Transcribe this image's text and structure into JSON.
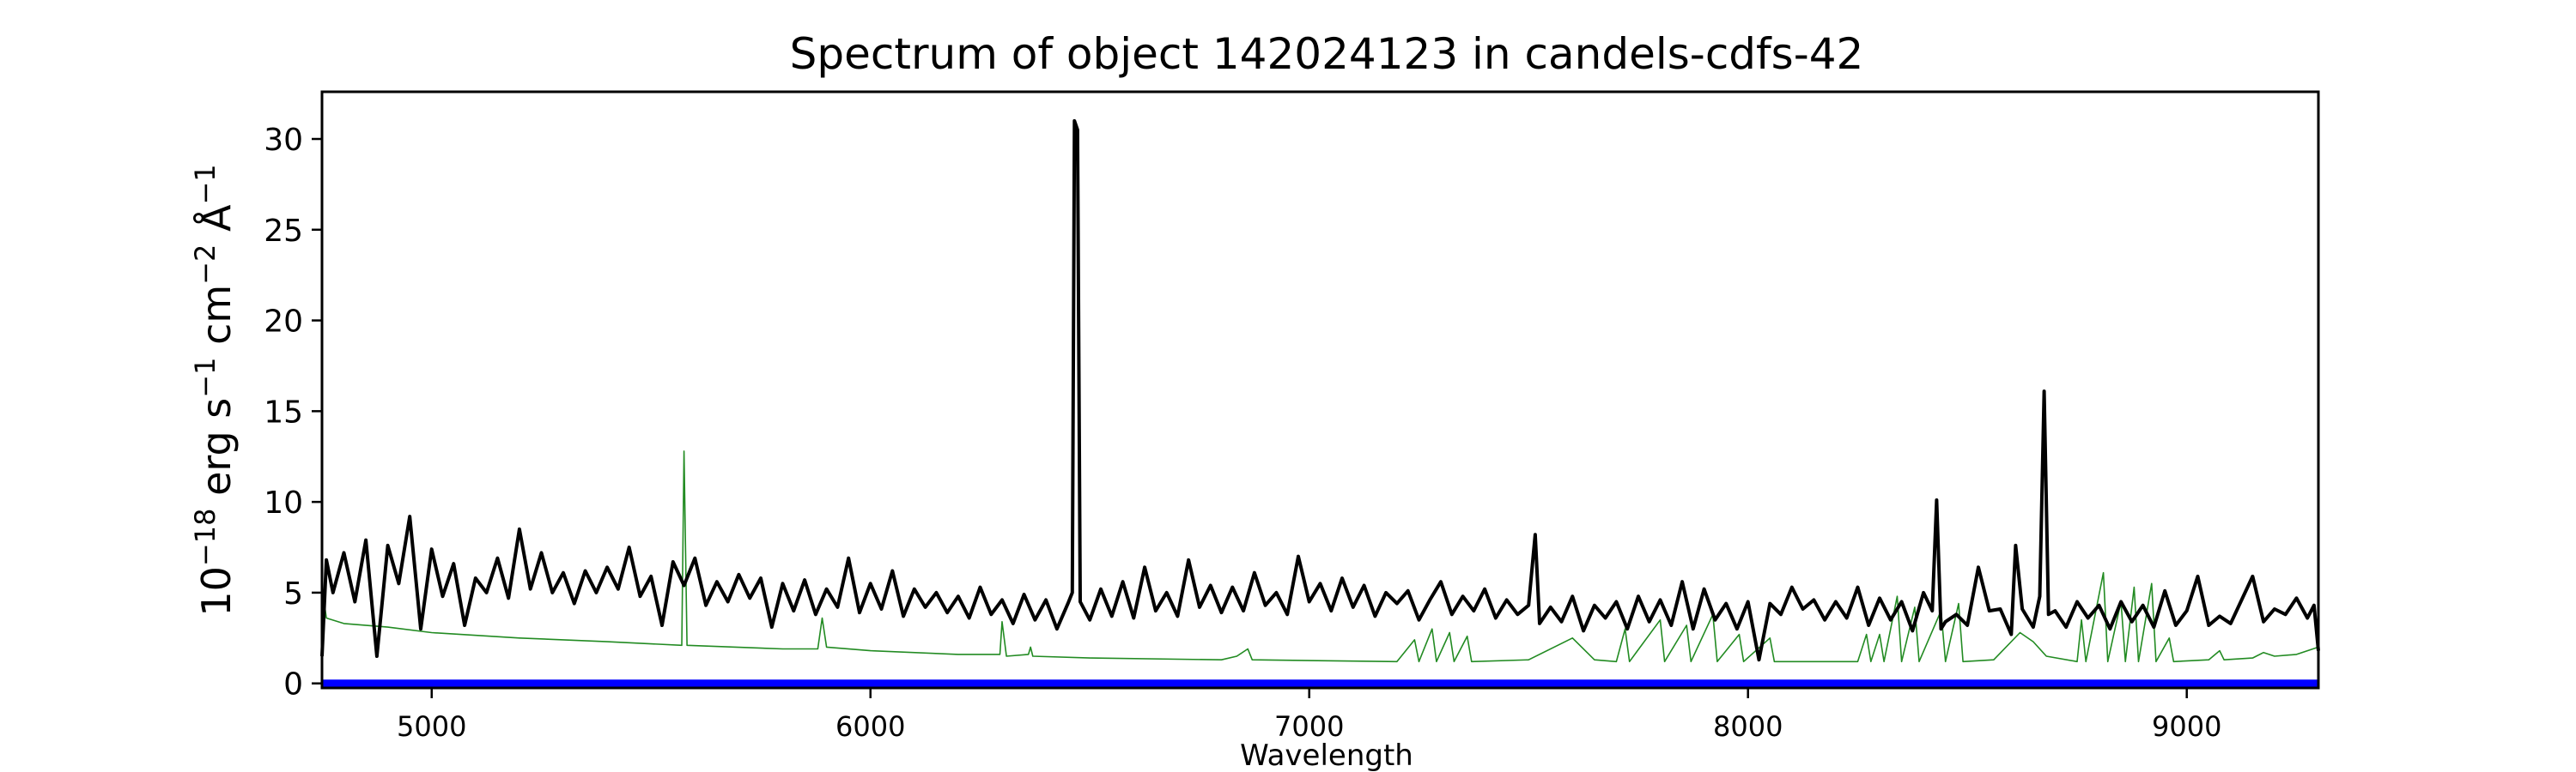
{
  "chart_data": {
    "type": "line",
    "title": "Spectrum of object 142024123 in candels-cdfs-42",
    "xlabel": "Wavelength",
    "ylabel_base": "10",
    "ylabel_exp": "−18",
    "ylabel_rest": " erg s",
    "ylabel_parts": [
      "10",
      "−18",
      " erg s",
      "−1",
      " cm",
      "−2",
      " Å",
      "−1"
    ],
    "xlim": [
      4750,
      9300
    ],
    "ylim": [
      -0.25,
      32.6
    ],
    "xticks": [
      5000,
      6000,
      7000,
      8000,
      9000
    ],
    "yticks": [
      0,
      5,
      10,
      15,
      20,
      25,
      30
    ],
    "grid": false,
    "colors": {
      "flux": "#000000",
      "sky": "#228b22",
      "zero": "#0000ff"
    },
    "series": [
      {
        "key": "flux",
        "points": [
          [
            4750,
            1.5
          ],
          [
            4760,
            6.8
          ],
          [
            4775,
            5.0
          ],
          [
            4800,
            7.2
          ],
          [
            4825,
            4.5
          ],
          [
            4850,
            7.9
          ],
          [
            4875,
            1.5
          ],
          [
            4900,
            7.6
          ],
          [
            4925,
            5.5
          ],
          [
            4950,
            9.2
          ],
          [
            4975,
            3.0
          ],
          [
            5000,
            7.4
          ],
          [
            5025,
            4.8
          ],
          [
            5050,
            6.6
          ],
          [
            5075,
            3.2
          ],
          [
            5100,
            5.8
          ],
          [
            5125,
            5.0
          ],
          [
            5150,
            6.9
          ],
          [
            5175,
            4.7
          ],
          [
            5200,
            8.5
          ],
          [
            5225,
            5.2
          ],
          [
            5250,
            7.2
          ],
          [
            5275,
            5.0
          ],
          [
            5300,
            6.1
          ],
          [
            5325,
            4.4
          ],
          [
            5350,
            6.2
          ],
          [
            5375,
            5.0
          ],
          [
            5400,
            6.4
          ],
          [
            5425,
            5.2
          ],
          [
            5450,
            7.5
          ],
          [
            5475,
            4.8
          ],
          [
            5500,
            5.9
          ],
          [
            5525,
            3.2
          ],
          [
            5550,
            6.7
          ],
          [
            5575,
            5.4
          ],
          [
            5600,
            6.9
          ],
          [
            5625,
            4.3
          ],
          [
            5650,
            5.6
          ],
          [
            5675,
            4.5
          ],
          [
            5700,
            6.0
          ],
          [
            5725,
            4.7
          ],
          [
            5750,
            5.8
          ],
          [
            5775,
            3.1
          ],
          [
            5800,
            5.5
          ],
          [
            5825,
            4.0
          ],
          [
            5850,
            5.7
          ],
          [
            5875,
            3.8
          ],
          [
            5900,
            5.2
          ],
          [
            5925,
            4.2
          ],
          [
            5950,
            6.9
          ],
          [
            5975,
            3.9
          ],
          [
            6000,
            5.5
          ],
          [
            6025,
            4.1
          ],
          [
            6050,
            6.2
          ],
          [
            6075,
            3.7
          ],
          [
            6100,
            5.2
          ],
          [
            6125,
            4.2
          ],
          [
            6150,
            5.0
          ],
          [
            6175,
            3.9
          ],
          [
            6200,
            4.8
          ],
          [
            6225,
            3.6
          ],
          [
            6250,
            5.3
          ],
          [
            6275,
            3.8
          ],
          [
            6300,
            4.6
          ],
          [
            6325,
            3.3
          ],
          [
            6350,
            4.9
          ],
          [
            6375,
            3.5
          ],
          [
            6400,
            4.6
          ],
          [
            6425,
            3.0
          ],
          [
            6450,
            4.4
          ],
          [
            6460,
            5.0
          ],
          [
            6465,
            31.0
          ],
          [
            6472,
            30.5
          ],
          [
            6478,
            4.5
          ],
          [
            6500,
            3.5
          ],
          [
            6525,
            5.2
          ],
          [
            6550,
            3.7
          ],
          [
            6575,
            5.6
          ],
          [
            6600,
            3.6
          ],
          [
            6625,
            6.4
          ],
          [
            6650,
            4.0
          ],
          [
            6675,
            5.0
          ],
          [
            6700,
            3.7
          ],
          [
            6725,
            6.8
          ],
          [
            6750,
            4.2
          ],
          [
            6775,
            5.4
          ],
          [
            6800,
            3.9
          ],
          [
            6825,
            5.3
          ],
          [
            6850,
            4.0
          ],
          [
            6875,
            6.1
          ],
          [
            6900,
            4.3
          ],
          [
            6925,
            5.0
          ],
          [
            6950,
            3.8
          ],
          [
            6975,
            7.0
          ],
          [
            7000,
            4.5
          ],
          [
            7025,
            5.5
          ],
          [
            7050,
            4.0
          ],
          [
            7075,
            5.8
          ],
          [
            7100,
            4.2
          ],
          [
            7125,
            5.4
          ],
          [
            7150,
            3.7
          ],
          [
            7175,
            5.0
          ],
          [
            7200,
            4.4
          ],
          [
            7225,
            5.1
          ],
          [
            7250,
            3.5
          ],
          [
            7275,
            4.6
          ],
          [
            7300,
            5.6
          ],
          [
            7325,
            3.8
          ],
          [
            7350,
            4.8
          ],
          [
            7375,
            4.0
          ],
          [
            7400,
            5.2
          ],
          [
            7425,
            3.6
          ],
          [
            7450,
            4.6
          ],
          [
            7475,
            3.8
          ],
          [
            7500,
            4.3
          ],
          [
            7515,
            8.2
          ],
          [
            7525,
            3.3
          ],
          [
            7550,
            4.2
          ],
          [
            7575,
            3.4
          ],
          [
            7600,
            4.8
          ],
          [
            7625,
            2.9
          ],
          [
            7650,
            4.3
          ],
          [
            7675,
            3.6
          ],
          [
            7700,
            4.5
          ],
          [
            7725,
            3.0
          ],
          [
            7750,
            4.8
          ],
          [
            7775,
            3.4
          ],
          [
            7800,
            4.6
          ],
          [
            7825,
            3.2
          ],
          [
            7850,
            5.6
          ],
          [
            7875,
            3.0
          ],
          [
            7900,
            5.2
          ],
          [
            7925,
            3.5
          ],
          [
            7950,
            4.4
          ],
          [
            7975,
            3.0
          ],
          [
            8000,
            4.5
          ],
          [
            8025,
            1.3
          ],
          [
            8050,
            4.4
          ],
          [
            8075,
            3.8
          ],
          [
            8100,
            5.3
          ],
          [
            8125,
            4.1
          ],
          [
            8150,
            4.6
          ],
          [
            8175,
            3.5
          ],
          [
            8200,
            4.5
          ],
          [
            8225,
            3.6
          ],
          [
            8250,
            5.3
          ],
          [
            8275,
            3.2
          ],
          [
            8300,
            4.7
          ],
          [
            8325,
            3.5
          ],
          [
            8350,
            4.5
          ],
          [
            8375,
            2.9
          ],
          [
            8400,
            5.0
          ],
          [
            8420,
            4.0
          ],
          [
            8430,
            10.1
          ],
          [
            8440,
            3.0
          ],
          [
            8450,
            3.4
          ],
          [
            8475,
            3.8
          ],
          [
            8500,
            3.2
          ],
          [
            8525,
            6.4
          ],
          [
            8550,
            4.0
          ],
          [
            8575,
            4.1
          ],
          [
            8600,
            2.7
          ],
          [
            8610,
            7.6
          ],
          [
            8625,
            4.1
          ],
          [
            8650,
            3.1
          ],
          [
            8665,
            4.8
          ],
          [
            8675,
            16.1
          ],
          [
            8685,
            3.8
          ],
          [
            8700,
            4.0
          ],
          [
            8725,
            3.1
          ],
          [
            8750,
            4.5
          ],
          [
            8775,
            3.6
          ],
          [
            8800,
            4.3
          ],
          [
            8825,
            3.0
          ],
          [
            8850,
            4.5
          ],
          [
            8875,
            3.4
          ],
          [
            8900,
            4.3
          ],
          [
            8925,
            3.1
          ],
          [
            8950,
            5.1
          ],
          [
            8975,
            3.2
          ],
          [
            9000,
            4.0
          ],
          [
            9025,
            5.9
          ],
          [
            9050,
            3.2
          ],
          [
            9075,
            3.7
          ],
          [
            9100,
            3.3
          ],
          [
            9125,
            4.6
          ],
          [
            9150,
            5.9
          ],
          [
            9175,
            3.4
          ],
          [
            9200,
            4.1
          ],
          [
            9225,
            3.8
          ],
          [
            9250,
            4.7
          ],
          [
            9275,
            3.6
          ],
          [
            9290,
            4.3
          ],
          [
            9300,
            1.8
          ]
        ]
      },
      {
        "key": "sky",
        "points": [
          [
            4750,
            5.3
          ],
          [
            4760,
            3.6
          ],
          [
            4800,
            3.3
          ],
          [
            4900,
            3.1
          ],
          [
            5000,
            2.8
          ],
          [
            5200,
            2.5
          ],
          [
            5400,
            2.3
          ],
          [
            5570,
            2.1
          ],
          [
            5575,
            12.8
          ],
          [
            5582,
            2.1
          ],
          [
            5800,
            1.9
          ],
          [
            5880,
            1.9
          ],
          [
            5890,
            3.6
          ],
          [
            5900,
            2.0
          ],
          [
            6000,
            1.8
          ],
          [
            6200,
            1.6
          ],
          [
            6295,
            1.6
          ],
          [
            6300,
            3.4
          ],
          [
            6310,
            1.5
          ],
          [
            6360,
            1.6
          ],
          [
            6365,
            2.0
          ],
          [
            6370,
            1.5
          ],
          [
            6500,
            1.4
          ],
          [
            6800,
            1.3
          ],
          [
            6835,
            1.5
          ],
          [
            6860,
            1.9
          ],
          [
            6870,
            1.3
          ],
          [
            7200,
            1.2
          ],
          [
            7240,
            2.4
          ],
          [
            7250,
            1.2
          ],
          [
            7280,
            3.0
          ],
          [
            7290,
            1.2
          ],
          [
            7320,
            2.8
          ],
          [
            7330,
            1.2
          ],
          [
            7360,
            2.6
          ],
          [
            7370,
            1.2
          ],
          [
            7500,
            1.3
          ],
          [
            7600,
            2.5
          ],
          [
            7650,
            1.3
          ],
          [
            7700,
            1.2
          ],
          [
            7720,
            3.0
          ],
          [
            7730,
            1.2
          ],
          [
            7800,
            3.5
          ],
          [
            7810,
            1.2
          ],
          [
            7860,
            3.2
          ],
          [
            7870,
            1.2
          ],
          [
            7920,
            3.8
          ],
          [
            7930,
            1.2
          ],
          [
            7980,
            2.7
          ],
          [
            7990,
            1.2
          ],
          [
            8050,
            2.5
          ],
          [
            8060,
            1.2
          ],
          [
            8250,
            1.2
          ],
          [
            8270,
            2.7
          ],
          [
            8280,
            1.2
          ],
          [
            8300,
            2.7
          ],
          [
            8310,
            1.2
          ],
          [
            8340,
            4.8
          ],
          [
            8350,
            1.2
          ],
          [
            8380,
            4.2
          ],
          [
            8390,
            1.2
          ],
          [
            8440,
            4.0
          ],
          [
            8450,
            1.2
          ],
          [
            8480,
            4.4
          ],
          [
            8490,
            1.2
          ],
          [
            8560,
            1.3
          ],
          [
            8620,
            2.8
          ],
          [
            8650,
            2.3
          ],
          [
            8680,
            1.5
          ],
          [
            8750,
            1.2
          ],
          [
            8760,
            3.5
          ],
          [
            8770,
            1.2
          ],
          [
            8810,
            6.1
          ],
          [
            8820,
            1.2
          ],
          [
            8850,
            4.5
          ],
          [
            8860,
            1.2
          ],
          [
            8880,
            5.3
          ],
          [
            8890,
            1.2
          ],
          [
            8920,
            5.5
          ],
          [
            8930,
            1.2
          ],
          [
            8960,
            2.5
          ],
          [
            8970,
            1.2
          ],
          [
            9050,
            1.3
          ],
          [
            9075,
            1.8
          ],
          [
            9085,
            1.3
          ],
          [
            9150,
            1.4
          ],
          [
            9175,
            1.7
          ],
          [
            9200,
            1.5
          ],
          [
            9250,
            1.6
          ],
          [
            9300,
            2.0
          ]
        ]
      },
      {
        "key": "zero",
        "points": [
          [
            4750,
            0
          ],
          [
            9300,
            0
          ]
        ]
      }
    ]
  }
}
